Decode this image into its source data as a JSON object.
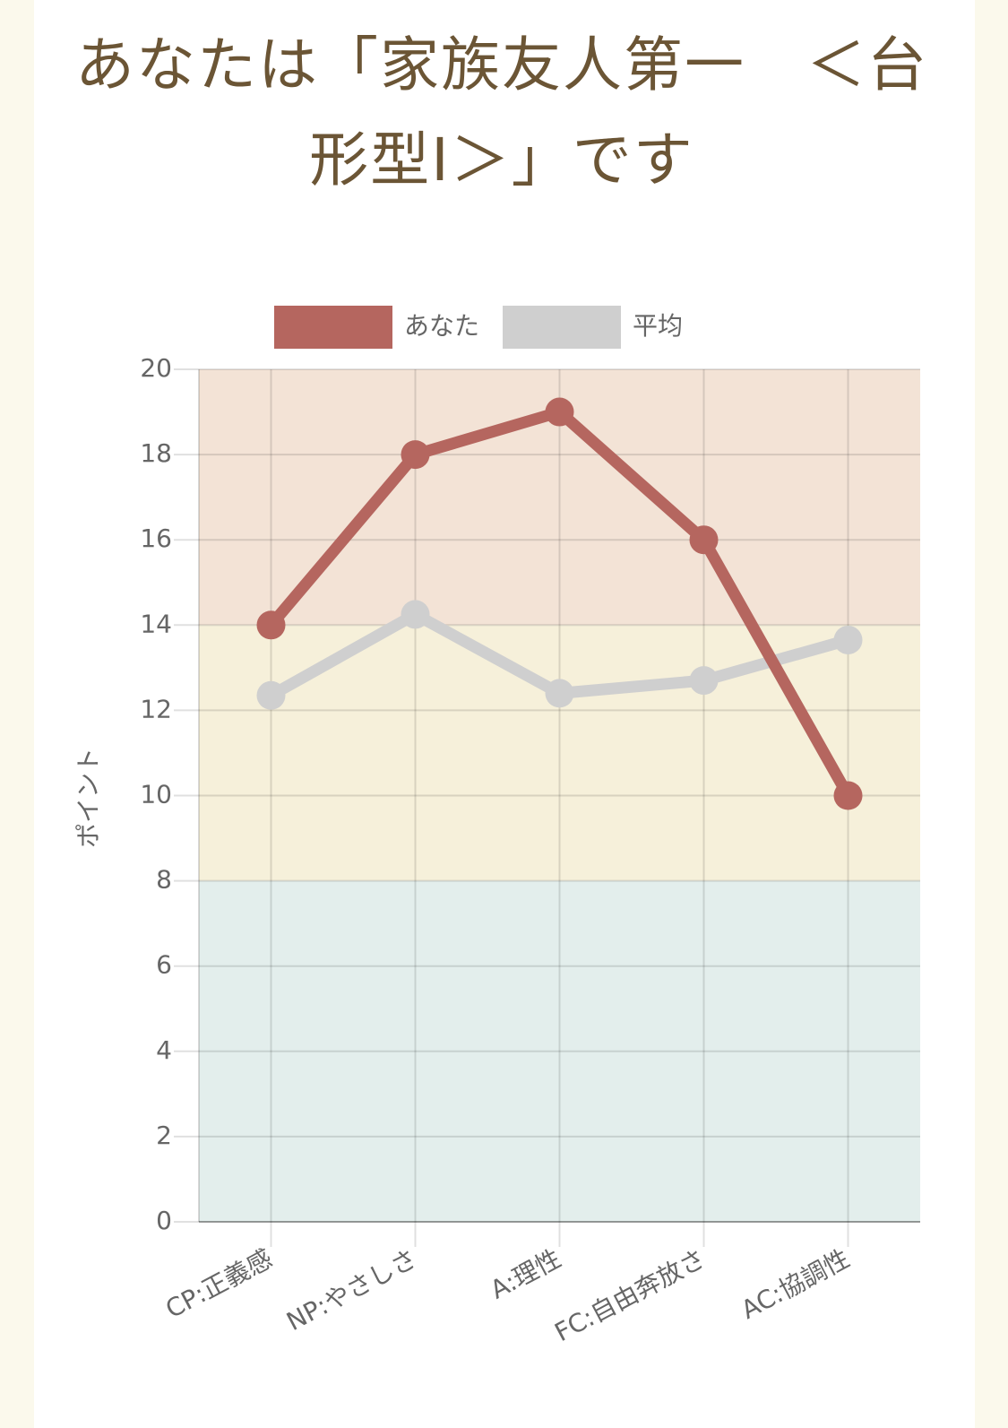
{
  "chart_data": {
    "type": "line",
    "title": "あなたは「家族友人第一　＜台形型Ⅰ＞」です",
    "y_label": "ポイント",
    "categories": [
      "CP:正義感",
      "NP:やさしさ",
      "A:理性",
      "FC:自由奔放さ",
      "AC:協調性"
    ],
    "series": [
      {
        "name": "あなた",
        "color": "#b5665f",
        "values": [
          14,
          18,
          19,
          16,
          10
        ]
      },
      {
        "name": "平均",
        "color": "#cfcfcf",
        "values": [
          12.35,
          14.25,
          12.4,
          12.7,
          13.65
        ]
      }
    ],
    "bands": [
      {
        "from": 14,
        "to": 20,
        "color": "#f3e3d6"
      },
      {
        "from": 8,
        "to": 14,
        "color": "#f6f0da"
      },
      {
        "from": 0,
        "to": 8,
        "color": "#e3eeec"
      }
    ],
    "ylim": [
      0,
      20
    ],
    "yticks": [
      0,
      2,
      4,
      6,
      8,
      10,
      12,
      14,
      16,
      18,
      20
    ],
    "grid": true
  }
}
